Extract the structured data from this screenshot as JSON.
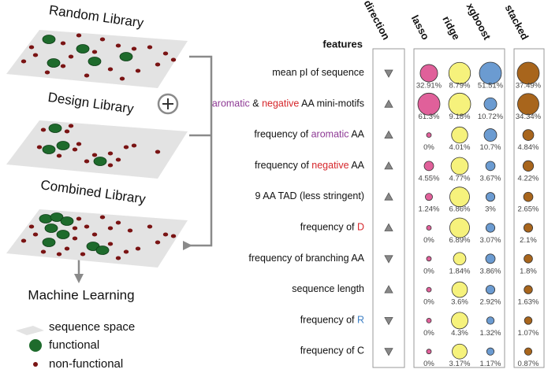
{
  "libraries": [
    "Random Library",
    "Design Library",
    "Combined Library"
  ],
  "output": "Machine Learning",
  "legend": [
    {
      "label": "sequence space",
      "color": "#e3e3e3"
    },
    {
      "label": "functional",
      "color": "#1e6b2c"
    },
    {
      "label": "non-functional",
      "color": "#7a1414"
    }
  ],
  "table": {
    "feature_header": "features",
    "direction_header": "direction",
    "columns": [
      {
        "name": "lasso",
        "color": "#e0609a"
      },
      {
        "name": "ridge",
        "color": "#f6f27c"
      },
      {
        "name": "xgboost",
        "color": "#6b9bd1"
      },
      {
        "name": "stacked",
        "color": "#a8651c"
      }
    ],
    "rows": [
      {
        "feature": [
          {
            "text": "mean pI of sequence"
          }
        ],
        "direction": "down",
        "values": [
          32.91,
          8.79,
          51.51,
          37.49
        ],
        "value_labels": [
          "32.91%",
          "8.79%",
          "51.51%",
          "37.49%"
        ]
      },
      {
        "feature": [
          {
            "text": "aromatic",
            "color": "#8e3a95"
          },
          {
            "text": " & "
          },
          {
            "text": "negative",
            "color": "#d6262b"
          },
          {
            "text": " AA mini-motifs"
          }
        ],
        "direction": "up",
        "values": [
          61.3,
          9.18,
          10.72,
          34.34
        ],
        "value_labels": [
          "61.3%",
          "9.18%",
          "10.72%",
          "34.34%"
        ]
      },
      {
        "feature": [
          {
            "text": "frequency of "
          },
          {
            "text": "aromatic",
            "color": "#8e3a95"
          },
          {
            "text": " AA"
          }
        ],
        "direction": "up",
        "values": [
          0,
          4.01,
          10.7,
          4.84
        ],
        "value_labels": [
          "0%",
          "4.01%",
          "10.7%",
          "4.84%"
        ]
      },
      {
        "feature": [
          {
            "text": "frequency of "
          },
          {
            "text": "negative",
            "color": "#d6262b"
          },
          {
            "text": " AA"
          }
        ],
        "direction": "up",
        "values": [
          4.55,
          4.77,
          3.67,
          4.22
        ],
        "value_labels": [
          "4.55%",
          "4.77%",
          "3.67%",
          "4.22%"
        ]
      },
      {
        "feature": [
          {
            "text": "9 AA TAD (less stringent)"
          }
        ],
        "direction": "up",
        "values": [
          1.24,
          6.86,
          3,
          2.65
        ],
        "value_labels": [
          "1.24%",
          "6.86%",
          "3%",
          "2.65%"
        ]
      },
      {
        "feature": [
          {
            "text": "frequency of "
          },
          {
            "text": "D",
            "color": "#d6262b"
          }
        ],
        "direction": "up",
        "values": [
          0,
          6.89,
          3.07,
          2.1
        ],
        "value_labels": [
          "0%",
          "6.89%",
          "3.07%",
          "2.1%"
        ]
      },
      {
        "feature": [
          {
            "text": "frequency of branching AA"
          }
        ],
        "direction": "down",
        "values": [
          0,
          1.84,
          3.86,
          1.8
        ],
        "value_labels": [
          "0%",
          "1.84%",
          "3.86%",
          "1.8%"
        ]
      },
      {
        "feature": [
          {
            "text": "sequence length"
          }
        ],
        "direction": "up",
        "values": [
          0,
          3.6,
          2.92,
          1.63
        ],
        "value_labels": [
          "0%",
          "3.6%",
          "2.92%",
          "1.63%"
        ]
      },
      {
        "feature": [
          {
            "text": "frequency of "
          },
          {
            "text": "R",
            "color": "#3d7fc4"
          }
        ],
        "direction": "down",
        "values": [
          0,
          4.3,
          1.32,
          1.07
        ],
        "value_labels": [
          "0%",
          "4.3%",
          "1.32%",
          "1.07%"
        ]
      },
      {
        "feature": [
          {
            "text": "frequency of C"
          }
        ],
        "direction": "down",
        "values": [
          0,
          3.17,
          1.17,
          0.87
        ],
        "value_labels": [
          "0%",
          "3.17%",
          "1.17%",
          "0.87%"
        ]
      }
    ]
  }
}
